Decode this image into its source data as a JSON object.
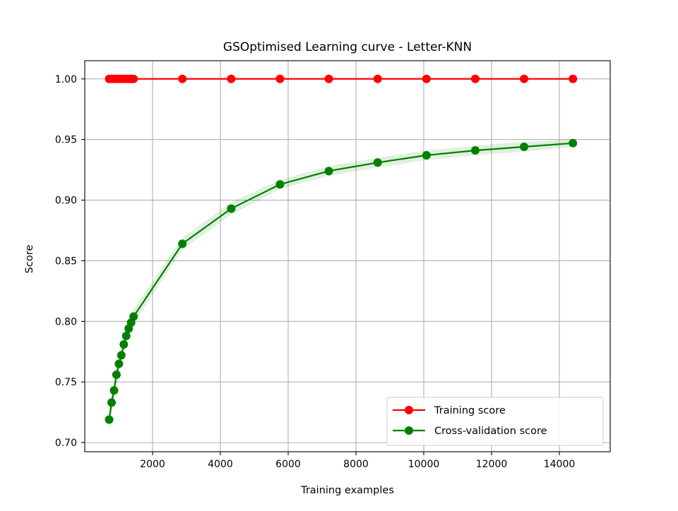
{
  "chart_data": {
    "type": "line",
    "title": "GSOptimised Learning curve - Letter-KNN",
    "xlabel": "Training examples",
    "ylabel": "Score",
    "xlim": [
      0,
      15500
    ],
    "ylim": [
      0.6925,
      1.015
    ],
    "xticks": [
      2000,
      4000,
      6000,
      8000,
      10000,
      12000,
      14000
    ],
    "yticks": [
      0.7,
      0.75,
      0.8,
      0.85,
      0.9,
      0.95,
      1.0
    ],
    "grid": true,
    "legend_position": "lower right",
    "x": [
      720,
      792,
      864,
      936,
      1008,
      1080,
      1152,
      1224,
      1296,
      1368,
      1440,
      2880,
      4320,
      5760,
      7200,
      8640,
      10080,
      11520,
      12960,
      14400
    ],
    "series": [
      {
        "name": "Training score",
        "color": "#ff0000",
        "values": [
          1.0,
          1.0,
          1.0,
          1.0,
          1.0,
          1.0,
          1.0,
          1.0,
          1.0,
          1.0,
          1.0,
          1.0,
          1.0,
          1.0,
          1.0,
          1.0,
          1.0,
          1.0,
          1.0,
          1.0
        ],
        "band": [
          0,
          0,
          0,
          0,
          0,
          0,
          0,
          0,
          0,
          0,
          0,
          0,
          0,
          0,
          0,
          0,
          0,
          0,
          0,
          0
        ]
      },
      {
        "name": "Cross-validation score",
        "color": "#008000",
        "values": [
          0.719,
          0.733,
          0.743,
          0.756,
          0.765,
          0.772,
          0.781,
          0.788,
          0.794,
          0.799,
          0.804,
          0.864,
          0.893,
          0.913,
          0.924,
          0.931,
          0.937,
          0.941,
          0.944,
          0.947
        ],
        "band": [
          0.01,
          0.009,
          0.008,
          0.008,
          0.007,
          0.007,
          0.007,
          0.006,
          0.006,
          0.006,
          0.006,
          0.005,
          0.005,
          0.004,
          0.004,
          0.004,
          0.004,
          0.004,
          0.004,
          0.003
        ]
      }
    ]
  }
}
